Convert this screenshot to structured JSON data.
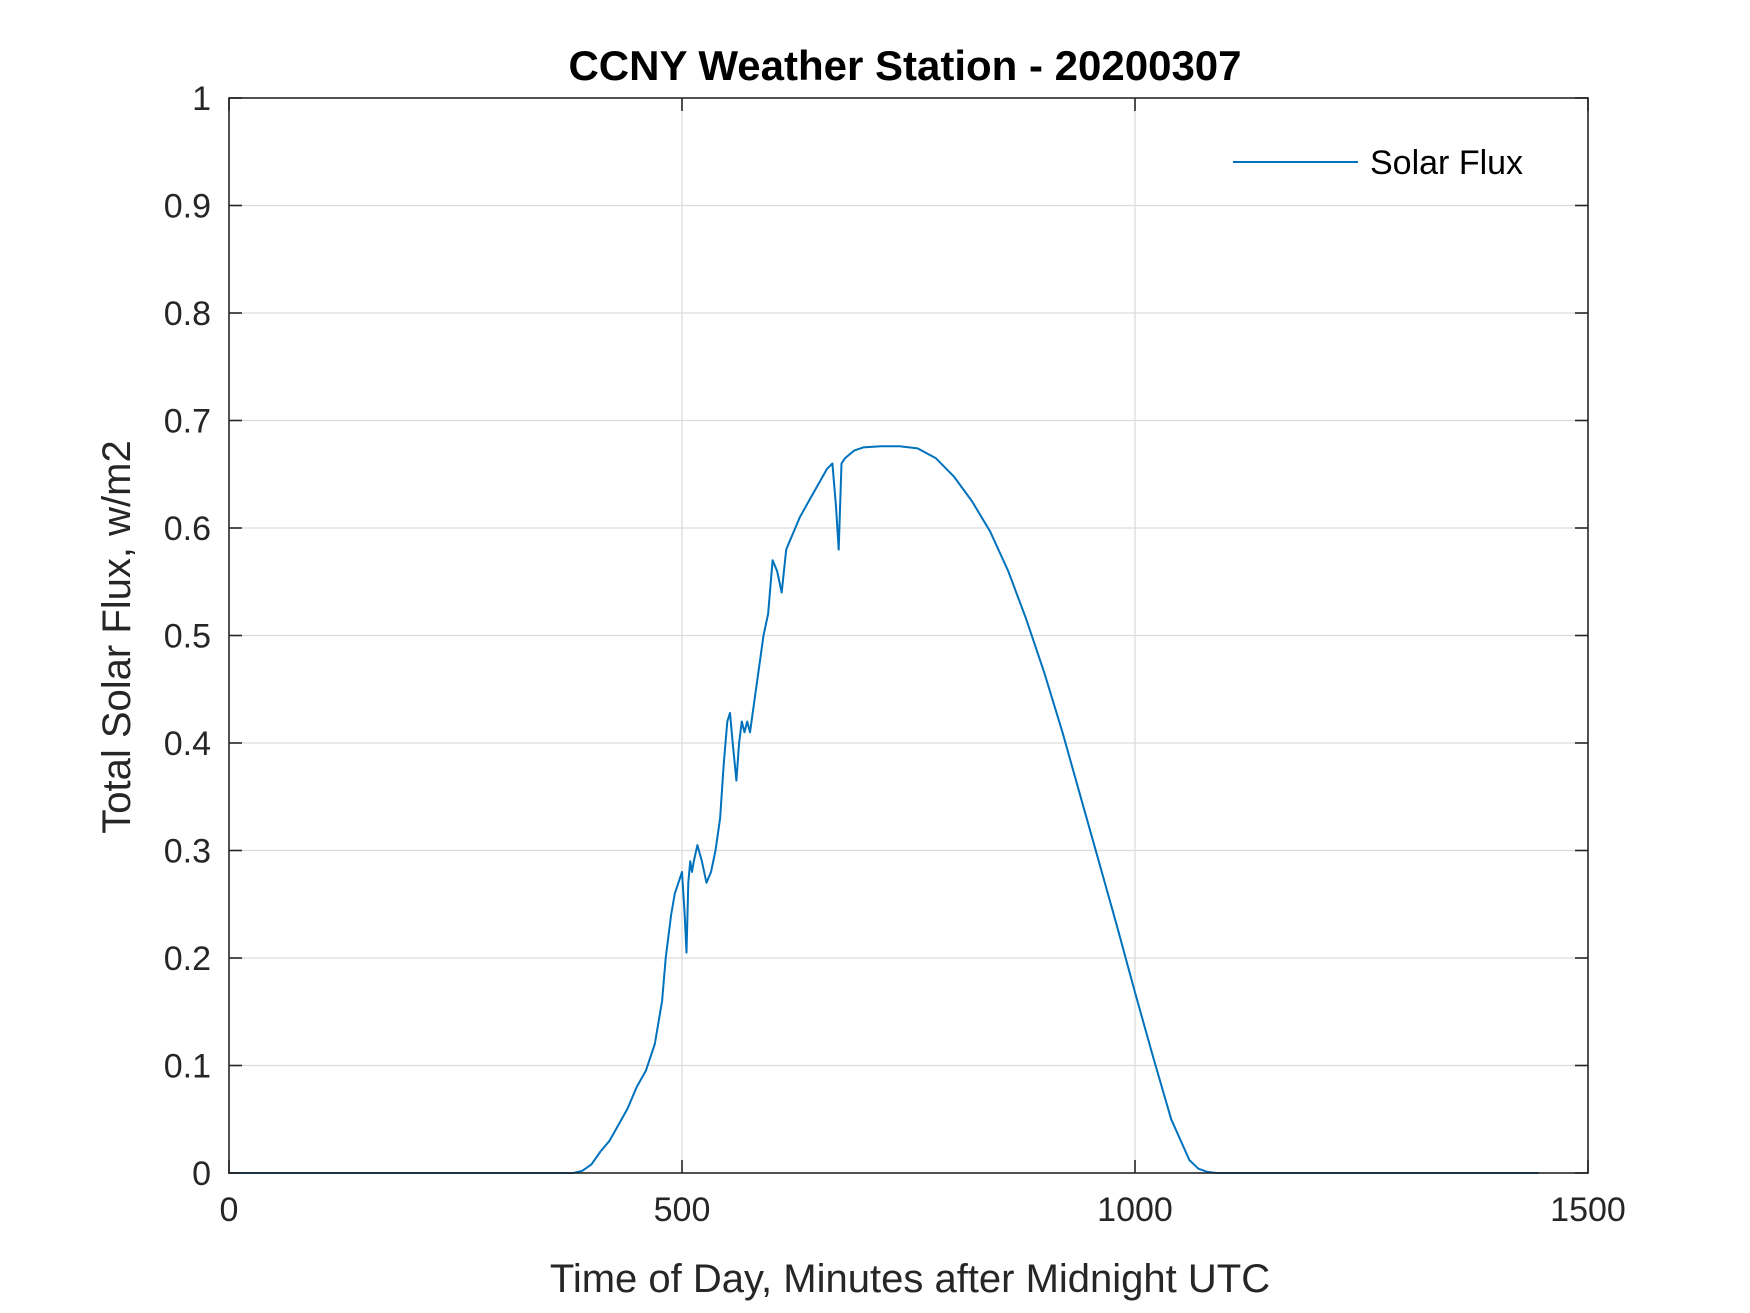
{
  "chart_data": {
    "type": "line",
    "title": "CCNY Weather Station - 20200307",
    "xlabel": "Time of Day, Minutes after Midnight UTC",
    "ylabel": "Total Solar Flux, w/m2",
    "xlim": [
      0,
      1500
    ],
    "ylim": [
      0,
      1
    ],
    "xticks": [
      0,
      500,
      1000,
      1500
    ],
    "xtick_labels": [
      "0",
      "500",
      "1000",
      "1500"
    ],
    "yticks": [
      0,
      0.1,
      0.2,
      0.3,
      0.4,
      0.5,
      0.6,
      0.7,
      0.8,
      0.9,
      1
    ],
    "ytick_labels": [
      "0",
      "0.1",
      "0.2",
      "0.3",
      "0.4",
      "0.5",
      "0.6",
      "0.7",
      "0.8",
      "0.9",
      "1"
    ],
    "grid": true,
    "legend_position": "top-right",
    "series": [
      {
        "name": "Solar Flux",
        "color": "#0072BD",
        "x": [
          0,
          100,
          200,
          300,
          380,
          390,
          400,
          410,
          420,
          430,
          440,
          450,
          460,
          470,
          478,
          482,
          488,
          492,
          496,
          500,
          503,
          505,
          507,
          509,
          511,
          513,
          517,
          522,
          527,
          532,
          537,
          542,
          546,
          550,
          553,
          556,
          560,
          563,
          566,
          569,
          572,
          575,
          580,
          585,
          590,
          595,
          600,
          605,
          610,
          615,
          620,
          625,
          630,
          640,
          650,
          660,
          666,
          670,
          673,
          676,
          680,
          690,
          700,
          720,
          740,
          760,
          780,
          800,
          820,
          840,
          860,
          880,
          900,
          920,
          940,
          960,
          980,
          1000,
          1020,
          1040,
          1060,
          1070,
          1080,
          1090,
          1100,
          1150,
          1200,
          1300,
          1400,
          1445
        ],
        "values": [
          0,
          0,
          0,
          0,
          0,
          0.002,
          0.008,
          0.02,
          0.03,
          0.045,
          0.06,
          0.08,
          0.095,
          0.12,
          0.16,
          0.2,
          0.24,
          0.26,
          0.27,
          0.28,
          0.24,
          0.205,
          0.27,
          0.29,
          0.28,
          0.29,
          0.305,
          0.29,
          0.27,
          0.28,
          0.3,
          0.33,
          0.38,
          0.42,
          0.428,
          0.4,
          0.365,
          0.4,
          0.42,
          0.41,
          0.42,
          0.41,
          0.44,
          0.47,
          0.5,
          0.52,
          0.57,
          0.56,
          0.54,
          0.58,
          0.59,
          0.6,
          0.61,
          0.625,
          0.64,
          0.655,
          0.66,
          0.62,
          0.58,
          0.66,
          0.665,
          0.672,
          0.675,
          0.676,
          0.676,
          0.674,
          0.665,
          0.648,
          0.625,
          0.597,
          0.56,
          0.515,
          0.465,
          0.41,
          0.35,
          0.29,
          0.23,
          0.168,
          0.108,
          0.05,
          0.012,
          0.004,
          0.001,
          0,
          0,
          0,
          0,
          0,
          0,
          0
        ]
      }
    ]
  }
}
